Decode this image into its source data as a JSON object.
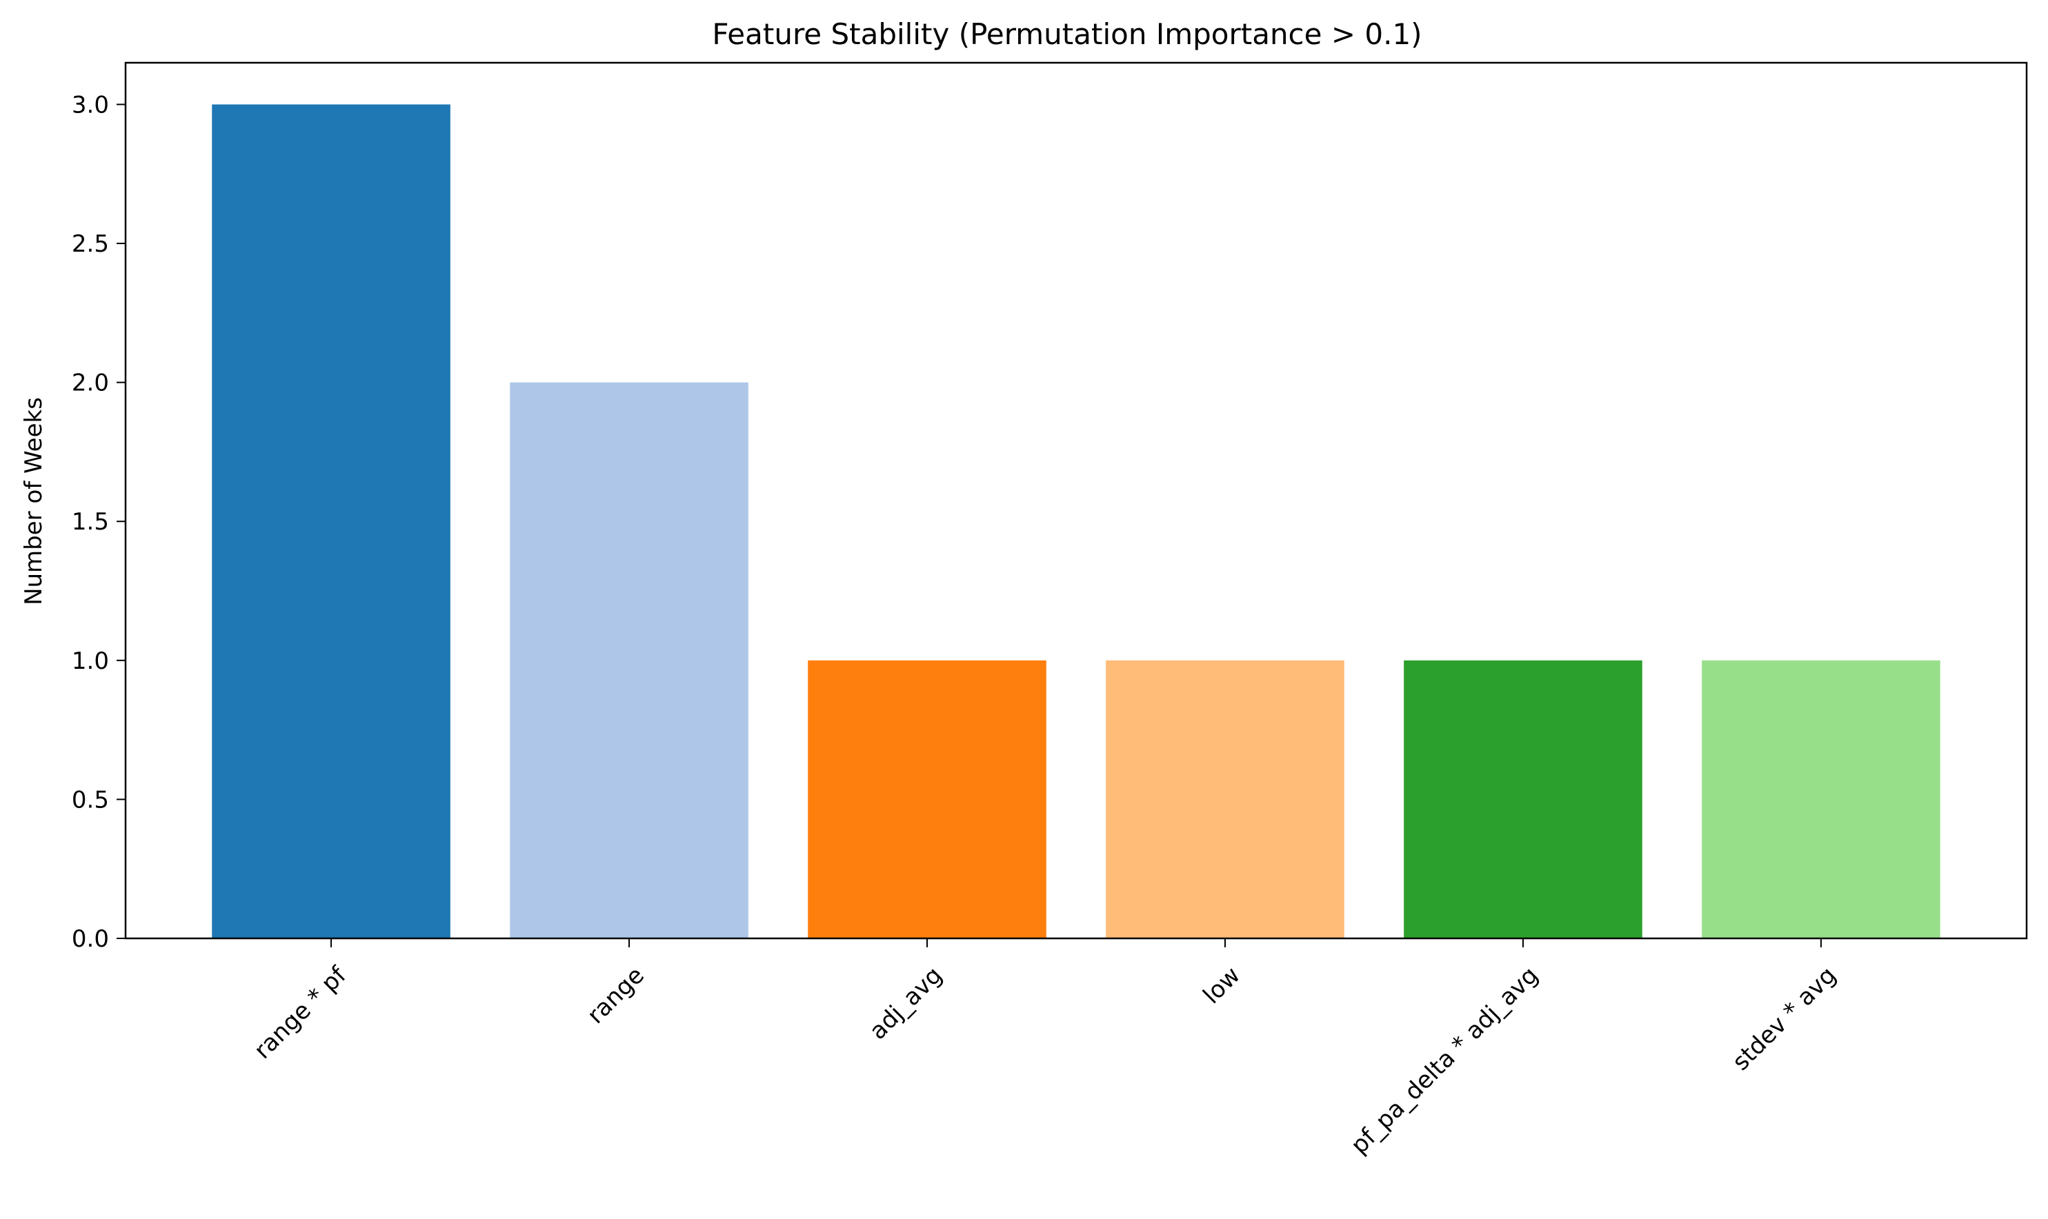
{
  "chart_data": {
    "type": "bar",
    "title": "Feature Stability (Permutation Importance > 0.1)",
    "xlabel": "",
    "ylabel": "Number of Weeks",
    "categories": [
      "range * pf",
      "range",
      "adj_avg",
      "low",
      "pf_pa_delta * adj_avg",
      "stdev * avg"
    ],
    "values": [
      3,
      2,
      1,
      1,
      1,
      1
    ],
    "colors": [
      "#1f77b4",
      "#aec7e8",
      "#ff7f0e",
      "#ffbb78",
      "#2ca02c",
      "#98df8a"
    ],
    "ylim": [
      0,
      3.15
    ],
    "yticks": [
      0.0,
      0.5,
      1.0,
      1.5,
      2.0,
      2.5,
      3.0
    ],
    "ytick_labels": [
      "0.0",
      "0.5",
      "1.0",
      "1.5",
      "2.0",
      "2.5",
      "3.0"
    ],
    "grid": false,
    "legend": "none"
  }
}
